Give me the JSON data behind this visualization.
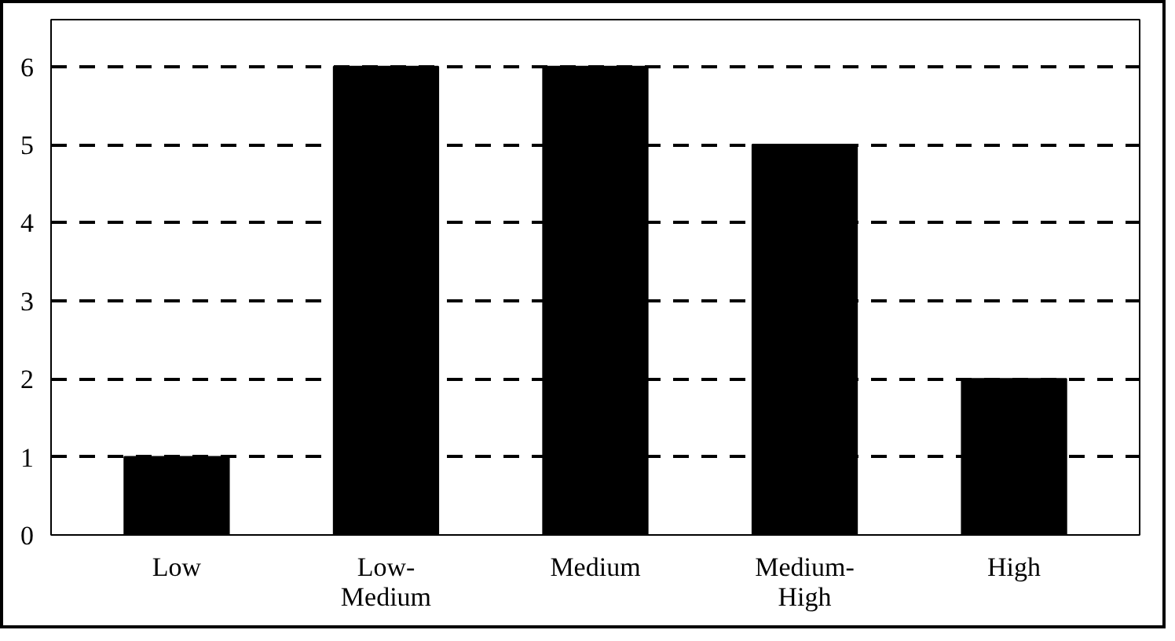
{
  "chart_data": {
    "type": "bar",
    "categories": [
      "Low",
      "Low-\nMedium",
      "Medium",
      "Medium-\nHigh",
      "High"
    ],
    "values": [
      1,
      6,
      6,
      5,
      2
    ],
    "color": "#000000",
    "ylim": [
      0,
      6.6
    ],
    "yticks": [
      0,
      1,
      2,
      3,
      4,
      5,
      6
    ],
    "grid": "y",
    "line_style": "dashed"
  }
}
